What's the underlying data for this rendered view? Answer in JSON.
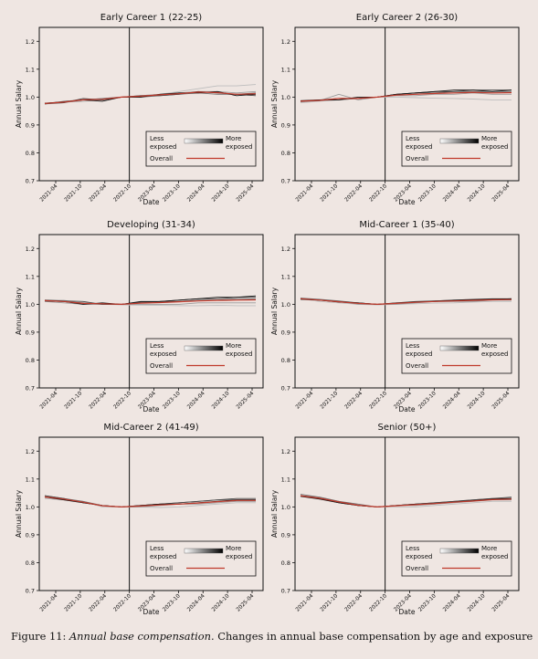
{
  "figure": {
    "caption_label": "Figure 11:",
    "caption_emphasis": "Annual base compensation.",
    "caption_text": "Changes in annual base compensation by age and exposure"
  },
  "chart_data": [
    {
      "type": "line",
      "title": "Early Career 1 (22-25)",
      "xlabel": "Date",
      "ylabel": "Annual Salary",
      "ylim": [
        0.7,
        1.25
      ],
      "yticks": [
        "0.7",
        "0.8",
        "0.9",
        "1.0",
        "1.1",
        "1.2"
      ],
      "xticks": [
        "2021-04",
        "2021-10",
        "2022-04",
        "2022-10",
        "2023-04",
        "2023-10",
        "2024-04",
        "2024-10",
        "2025-04"
      ],
      "vline": "2022-10",
      "legend": {
        "less": "Less\nexposed",
        "more": "More\nexposed",
        "overall": "Overall",
        "placement": "lower-right"
      },
      "series": [
        {
          "color": "#bdbdbd",
          "values": [
            0.975,
            0.98,
            0.99,
            0.995,
            1.0,
            1.005,
            1.01,
            1.02,
            1.03,
            1.04,
            1.04,
            1.045
          ]
        },
        {
          "color": "#9a9a9a",
          "values": [
            0.978,
            0.982,
            0.985,
            0.99,
            1.0,
            1.005,
            1.01,
            1.015,
            1.02,
            1.02,
            1.015,
            1.02
          ]
        },
        {
          "color": "#6f6f6f",
          "values": [
            0.975,
            0.985,
            0.99,
            0.995,
            1.0,
            1.0,
            1.005,
            1.01,
            1.015,
            1.01,
            1.01,
            1.015
          ]
        },
        {
          "color": "#444444",
          "values": [
            0.976,
            0.98,
            0.995,
            0.99,
            1.0,
            1.005,
            1.005,
            1.01,
            1.02,
            1.015,
            1.01,
            1.005
          ]
        },
        {
          "color": "#111111",
          "values": [
            0.978,
            0.983,
            0.99,
            0.985,
            1.0,
            1.0,
            1.01,
            1.015,
            1.015,
            1.02,
            1.005,
            1.01
          ]
        }
      ],
      "overall": [
        0.977,
        0.982,
        0.99,
        0.992,
        1.0,
        1.003,
        1.008,
        1.012,
        1.018,
        1.016,
        1.01,
        1.012
      ]
    },
    {
      "type": "line",
      "title": "Early Career 2 (26-30)",
      "xlabel": "Date",
      "ylabel": "Annual Salary",
      "ylim": [
        0.7,
        1.25
      ],
      "yticks": [
        "0.7",
        "0.8",
        "0.9",
        "1.0",
        "1.1",
        "1.2"
      ],
      "xticks": [
        "2021-04",
        "2021-10",
        "2022-04",
        "2022-10",
        "2023-04",
        "2023-10",
        "2024-04",
        "2024-10",
        "2025-04"
      ],
      "vline": "2022-10",
      "legend": {
        "less": "Less\nexposed",
        "more": "More\nexposed",
        "overall": "Overall",
        "placement": "lower-right"
      },
      "series": [
        {
          "color": "#bdbdbd",
          "values": [
            0.98,
            0.985,
            0.99,
            0.995,
            1.0,
            1.0,
            0.998,
            0.996,
            0.995,
            0.993,
            0.99,
            0.99
          ]
        },
        {
          "color": "#9a9a9a",
          "values": [
            0.983,
            0.987,
            1.01,
            0.99,
            1.0,
            1.005,
            1.005,
            1.01,
            1.01,
            1.015,
            1.01,
            1.01
          ]
        },
        {
          "color": "#6f6f6f",
          "values": [
            0.985,
            0.988,
            0.99,
            0.995,
            1.0,
            1.01,
            1.015,
            1.015,
            1.02,
            1.02,
            1.02,
            1.02
          ]
        },
        {
          "color": "#444444",
          "values": [
            0.985,
            0.99,
            0.995,
            0.995,
            1.0,
            1.01,
            1.015,
            1.02,
            1.02,
            1.025,
            1.025,
            1.025
          ]
        },
        {
          "color": "#111111",
          "values": [
            0.987,
            0.99,
            0.99,
            1.0,
            1.0,
            1.01,
            1.015,
            1.02,
            1.025,
            1.025,
            1.02,
            1.025
          ]
        }
      ],
      "overall": [
        0.985,
        0.988,
        0.995,
        0.995,
        1.0,
        1.007,
        1.01,
        1.013,
        1.015,
        1.017,
        1.015,
        1.016
      ]
    },
    {
      "type": "line",
      "title": "Developing (31-34)",
      "xlabel": "Date",
      "ylabel": "Annual Salary",
      "ylim": [
        0.7,
        1.25
      ],
      "yticks": [
        "0.7",
        "0.8",
        "0.9",
        "1.0",
        "1.1",
        "1.2"
      ],
      "xticks": [
        "2021-04",
        "2021-10",
        "2022-04",
        "2022-10",
        "2023-04",
        "2023-10",
        "2024-04",
        "2024-10",
        "2025-04"
      ],
      "vline": "2022-10",
      "legend": {
        "less": "Less\nexposed",
        "more": "More\nexposed",
        "overall": "Overall",
        "placement": "lower-right"
      },
      "series": [
        {
          "color": "#bdbdbd",
          "values": [
            1.015,
            1.015,
            1.0,
            1.0,
            0.998,
            0.997,
            0.996,
            0.995,
            0.995,
            0.996,
            0.995,
            0.995
          ]
        },
        {
          "color": "#9a9a9a",
          "values": [
            1.01,
            1.005,
            1.0,
            1.0,
            1.0,
            1.0,
            1.0,
            1.0,
            1.005,
            1.005,
            1.005,
            1.005
          ]
        },
        {
          "color": "#6f6f6f",
          "values": [
            1.012,
            1.01,
            1.005,
            1.0,
            1.0,
            1.005,
            1.01,
            1.01,
            1.015,
            1.015,
            1.02,
            1.02
          ]
        },
        {
          "color": "#444444",
          "values": [
            1.015,
            1.012,
            1.01,
            1.0,
            1.0,
            1.008,
            1.01,
            1.015,
            1.02,
            1.02,
            1.025,
            1.025
          ]
        },
        {
          "color": "#111111",
          "values": [
            1.012,
            1.01,
            1.0,
            1.005,
            1.0,
            1.01,
            1.01,
            1.015,
            1.02,
            1.025,
            1.025,
            1.03
          ]
        }
      ],
      "overall": [
        1.013,
        1.01,
        1.003,
        1.002,
        1.0,
        1.004,
        1.006,
        1.009,
        1.012,
        1.014,
        1.015,
        1.016
      ]
    },
    {
      "type": "line",
      "title": "Mid-Career 1 (35-40)",
      "xlabel": "Date",
      "ylabel": "Annual Salary",
      "ylim": [
        0.7,
        1.25
      ],
      "yticks": [
        "0.7",
        "0.8",
        "0.9",
        "1.0",
        "1.1",
        "1.2"
      ],
      "xticks": [
        "2021-04",
        "2021-10",
        "2022-04",
        "2022-10",
        "2023-04",
        "2023-10",
        "2024-04",
        "2024-10",
        "2025-04"
      ],
      "vline": "2022-10",
      "legend": {
        "less": "Less\nexposed",
        "more": "More\nexposed",
        "overall": "Overall",
        "placement": "lower-right"
      },
      "series": [
        {
          "color": "#bdbdbd",
          "values": [
            1.02,
            1.01,
            1.005,
            1.0,
            0.998,
            1.0,
            1.002,
            1.004,
            1.005,
            1.008,
            1.01,
            1.01
          ]
        },
        {
          "color": "#9a9a9a",
          "values": [
            1.02,
            1.015,
            1.01,
            1.0,
            1.0,
            1.0,
            1.005,
            1.01,
            1.01,
            1.01,
            1.015,
            1.015
          ]
        },
        {
          "color": "#6f6f6f",
          "values": [
            1.022,
            1.018,
            1.012,
            1.005,
            1.0,
            1.005,
            1.008,
            1.012,
            1.015,
            1.015,
            1.018,
            1.02
          ]
        },
        {
          "color": "#444444",
          "values": [
            1.02,
            1.015,
            1.01,
            1.005,
            1.0,
            1.005,
            1.01,
            1.012,
            1.015,
            1.018,
            1.02,
            1.02
          ]
        },
        {
          "color": "#111111",
          "values": [
            1.018,
            1.015,
            1.008,
            1.005,
            1.0,
            1.004,
            1.008,
            1.01,
            1.014,
            1.016,
            1.018,
            1.02
          ]
        }
      ],
      "overall": [
        1.02,
        1.015,
        1.009,
        1.003,
        1.0,
        1.003,
        1.007,
        1.01,
        1.012,
        1.014,
        1.016,
        1.017
      ]
    },
    {
      "type": "line",
      "title": "Mid-Career 2 (41-49)",
      "xlabel": "Date",
      "ylabel": "Annual Salary",
      "ylim": [
        0.7,
        1.25
      ],
      "yticks": [
        "0.7",
        "0.8",
        "0.9",
        "1.0",
        "1.1",
        "1.2"
      ],
      "xticks": [
        "2021-04",
        "2021-10",
        "2022-04",
        "2022-10",
        "2023-04",
        "2023-10",
        "2024-04",
        "2024-10",
        "2025-04"
      ],
      "vline": "2022-10",
      "legend": {
        "less": "Less\nexposed",
        "more": "More\nexposed",
        "overall": "Overall",
        "placement": "lower-right"
      },
      "series": [
        {
          "color": "#bdbdbd",
          "values": [
            1.03,
            1.025,
            1.02,
            1.0,
            1.0,
            1.0,
            0.998,
            1.0,
            1.005,
            1.01,
            1.015,
            1.015
          ]
        },
        {
          "color": "#9a9a9a",
          "values": [
            1.035,
            1.03,
            1.015,
            1.005,
            1.0,
            1.0,
            1.005,
            1.01,
            1.01,
            1.015,
            1.02,
            1.02
          ]
        },
        {
          "color": "#6f6f6f",
          "values": [
            1.04,
            1.03,
            1.02,
            1.005,
            1.0,
            1.005,
            1.01,
            1.015,
            1.02,
            1.025,
            1.025,
            1.025
          ]
        },
        {
          "color": "#444444",
          "values": [
            1.04,
            1.03,
            1.015,
            1.005,
            1.0,
            1.005,
            1.01,
            1.015,
            1.02,
            1.025,
            1.03,
            1.03
          ]
        },
        {
          "color": "#111111",
          "values": [
            1.035,
            1.025,
            1.015,
            1.005,
            1.0,
            1.005,
            1.01,
            1.01,
            1.015,
            1.02,
            1.025,
            1.025
          ]
        }
      ],
      "overall": [
        1.036,
        1.028,
        1.017,
        1.004,
        1.0,
        1.003,
        1.007,
        1.01,
        1.014,
        1.019,
        1.023,
        1.023
      ]
    },
    {
      "type": "line",
      "title": "Senior (50+)",
      "xlabel": "Date",
      "ylabel": "Annual Salary",
      "ylim": [
        0.7,
        1.25
      ],
      "yticks": [
        "0.7",
        "0.8",
        "0.9",
        "1.0",
        "1.1",
        "1.2"
      ],
      "xticks": [
        "2021-04",
        "2021-10",
        "2022-04",
        "2022-10",
        "2023-04",
        "2023-10",
        "2024-04",
        "2024-10",
        "2025-04"
      ],
      "vline": "2022-10",
      "legend": {
        "less": "Less\nexposed",
        "more": "More\nexposed",
        "overall": "Overall",
        "placement": "lower-right"
      },
      "series": [
        {
          "color": "#bdbdbd",
          "values": [
            1.04,
            1.03,
            1.02,
            1.005,
            1.0,
            1.0,
            1.0,
            1.005,
            1.01,
            1.015,
            1.02,
            1.02
          ]
        },
        {
          "color": "#9a9a9a",
          "values": [
            1.04,
            1.035,
            1.02,
            1.005,
            1.0,
            1.005,
            1.005,
            1.01,
            1.015,
            1.02,
            1.025,
            1.025
          ]
        },
        {
          "color": "#6f6f6f",
          "values": [
            1.045,
            1.035,
            1.02,
            1.01,
            1.0,
            1.005,
            1.01,
            1.015,
            1.02,
            1.025,
            1.03,
            1.03
          ]
        },
        {
          "color": "#444444",
          "values": [
            1.04,
            1.03,
            1.015,
            1.005,
            1.0,
            1.005,
            1.01,
            1.015,
            1.02,
            1.025,
            1.03,
            1.035
          ]
        },
        {
          "color": "#111111",
          "values": [
            1.038,
            1.028,
            1.015,
            1.005,
            1.0,
            1.005,
            1.01,
            1.012,
            1.018,
            1.022,
            1.028,
            1.03
          ]
        }
      ],
      "overall": [
        1.04,
        1.031,
        1.018,
        1.006,
        1.0,
        1.004,
        1.008,
        1.012,
        1.017,
        1.021,
        1.026,
        1.028
      ]
    }
  ]
}
